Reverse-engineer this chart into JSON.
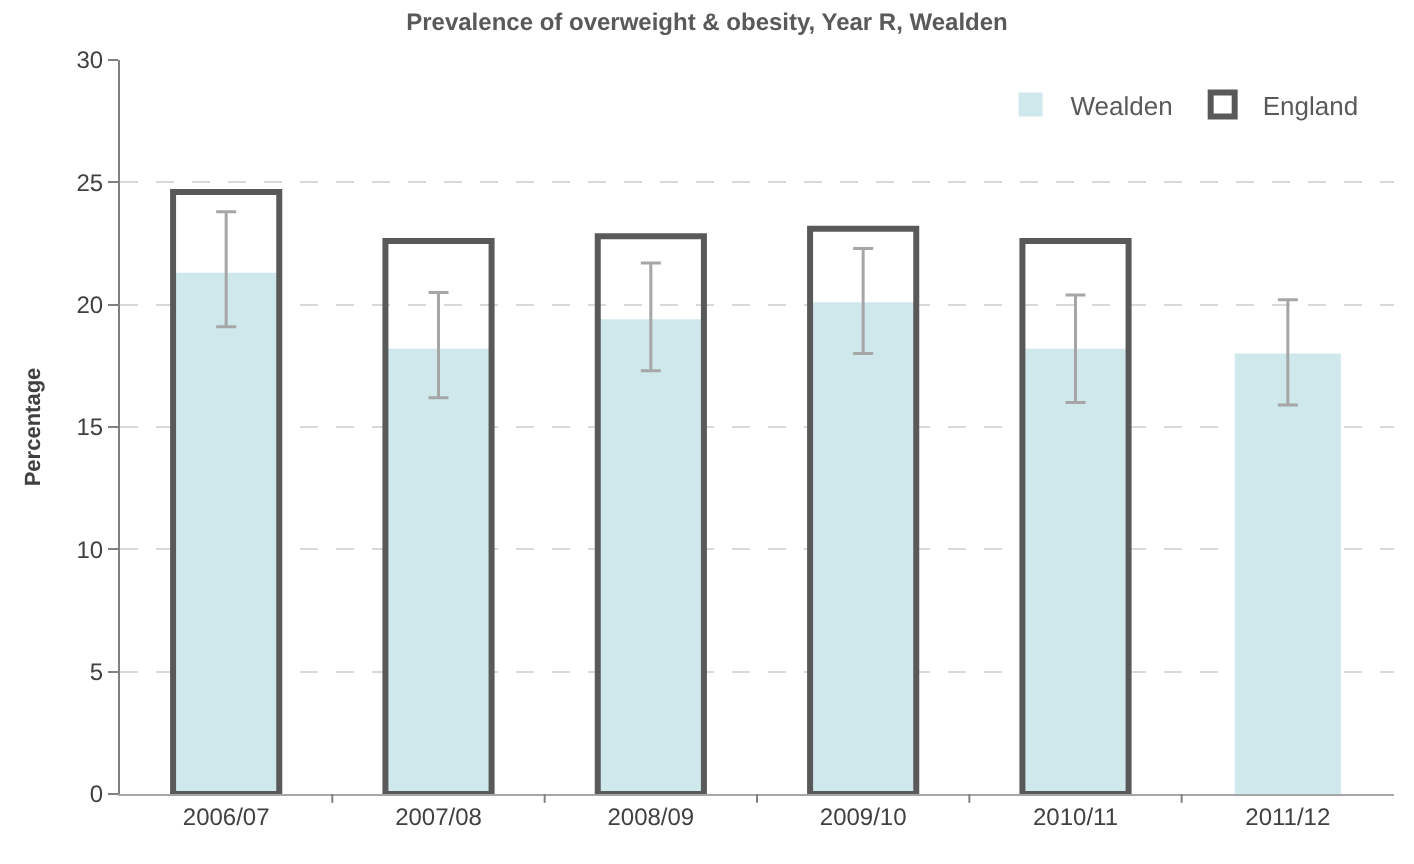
{
  "chart_data": {
    "type": "bar",
    "title": "Prevalence of overweight & obesity, Year R, Wealden",
    "ylabel": "Percentage",
    "categories": [
      "2006/07",
      "2007/08",
      "2008/09",
      "2009/10",
      "2010/11",
      "2011/12"
    ],
    "series": [
      {
        "name": "Wealden",
        "color": "#cfe8ec",
        "values": [
          21.3,
          18.2,
          19.4,
          20.1,
          18.2,
          18.0
        ],
        "errors": [
          [
            19.1,
            23.8
          ],
          [
            16.2,
            20.5
          ],
          [
            17.3,
            21.7
          ],
          [
            18.0,
            22.3
          ],
          [
            16.0,
            20.4
          ],
          [
            15.9,
            20.2
          ]
        ]
      },
      {
        "name": "England",
        "color": "#595959",
        "values": [
          24.6,
          22.6,
          22.8,
          23.1,
          22.6,
          null
        ]
      }
    ],
    "ylim": [
      0,
      30
    ],
    "yticks": [
      0,
      5,
      10,
      15,
      20,
      25,
      30
    ],
    "grid": "y",
    "legend": "top right"
  }
}
